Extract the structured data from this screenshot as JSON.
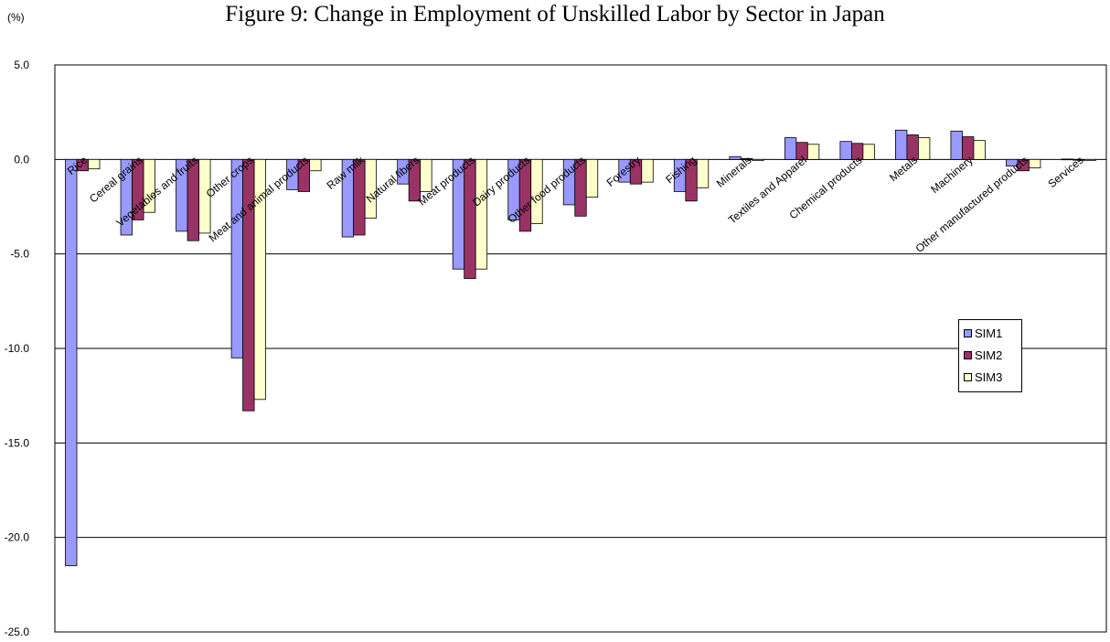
{
  "chart_data": {
    "type": "bar",
    "title": "Figure 9: Change in Employment of Unskilled Labor by Sector in Japan",
    "ylabel": "(%)",
    "xlabel": "",
    "ylim": [
      -25,
      5
    ],
    "yticks": [
      "5.0",
      "0.0",
      "-5.0",
      "-10.0",
      "-15.0",
      "-20.0",
      "-25.0"
    ],
    "grid": true,
    "legend_position": "right",
    "categories": [
      "Rice",
      "Cereal grains",
      "Vegetables and fruits",
      "Other crops",
      "Meat and animal products",
      "Raw milk",
      "Natural fibers",
      "Meat products",
      "Dairy products",
      "Other food products",
      "Forestry",
      "Fishing",
      "Minerals",
      "Textiles and Apparel",
      "Chemical products",
      "Metals",
      "Machinery",
      "Other manufactured products",
      "Services"
    ],
    "series": [
      {
        "name": "SIM1",
        "color": "#9999ff",
        "values": [
          -21.5,
          -4.0,
          -3.8,
          -10.5,
          -1.6,
          -4.1,
          -1.3,
          -5.8,
          -3.2,
          -2.4,
          -1.2,
          -1.7,
          0.15,
          1.15,
          0.95,
          1.55,
          1.5,
          -0.35,
          0.02
        ]
      },
      {
        "name": "SIM2",
        "color": "#993366",
        "values": [
          -0.6,
          -3.2,
          -4.3,
          -13.3,
          -1.7,
          -4.0,
          -2.2,
          -6.3,
          -3.8,
          -3.0,
          -1.3,
          -2.2,
          0.05,
          0.9,
          0.85,
          1.3,
          1.2,
          -0.6,
          -0.03
        ]
      },
      {
        "name": "SIM3",
        "color": "#ffffcc",
        "values": [
          -0.5,
          -2.8,
          -3.9,
          -12.7,
          -0.6,
          -3.1,
          -1.7,
          -5.8,
          -3.4,
          -2.0,
          -1.2,
          -1.5,
          -0.05,
          0.8,
          0.8,
          1.15,
          1.0,
          -0.45,
          -0.05
        ]
      }
    ]
  }
}
